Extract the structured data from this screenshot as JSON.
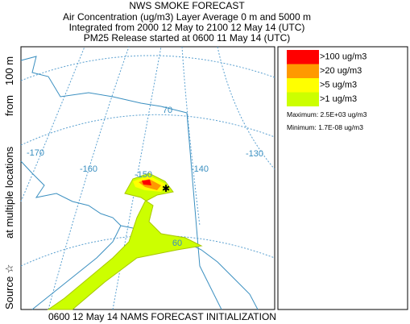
{
  "header": {
    "title": "NWS SMOKE FORECAST",
    "lines": [
      "Air Concentration (ug/m3) Layer Average    0 m and  5000 m",
      "Integrated from 2000 12 May to 2100 12 May 14 (UTC)",
      "PM25 Release started at 0600 11 May 14 (UTC)"
    ]
  },
  "map": {
    "grid_labels": [
      "-170",
      "-160",
      "-150",
      "-140",
      "-130",
      "70",
      "60"
    ]
  },
  "legend": {
    "items": [
      {
        "label": ">100 ug/m3",
        "color": "#ff0000"
      },
      {
        "label": ">20 ug/m3",
        "color": "#ff9900"
      },
      {
        "label": ">5 ug/m3",
        "color": "#ffff00"
      },
      {
        "label": ">1 ug/m3",
        "color": "#ccff00"
      }
    ],
    "maximum": "Maximum: 2.5E+03 ug/m3",
    "minimum": "Minimum: 1.7E-08 ug/m3"
  },
  "side_label": [
    "Source ☆",
    "at multiple locations",
    "from",
    "100 m"
  ],
  "footer": "0600 12 May 14 NAMS FORECAST INITIALIZATION"
}
